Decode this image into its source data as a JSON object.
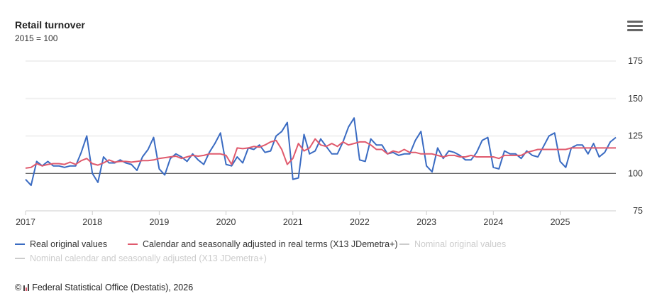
{
  "header": {
    "title": "Retail turnover",
    "subtitle": "2015 = 100",
    "menu_icon": "hamburger-menu-icon"
  },
  "chart_data": {
    "type": "line",
    "title": "Retail turnover",
    "subtitle": "2015 = 100",
    "xlabel": "",
    "ylabel": "",
    "ylim": [
      75,
      175
    ],
    "yticks": [
      "75",
      "100",
      "125",
      "150",
      "175"
    ],
    "xticks": [
      "2017",
      "2018",
      "2019",
      "2020",
      "2021",
      "2022",
      "2023",
      "2024",
      "2025"
    ],
    "x_start": "2017-01",
    "frequency": "monthly",
    "reference_line": 100,
    "grid": true,
    "legend_position": "bottom-left",
    "series": [
      {
        "name": "Real original values",
        "color": "#3a6bc2",
        "visible": true,
        "values": [
          96,
          92,
          108,
          105,
          108,
          105,
          105,
          104,
          105,
          105,
          114,
          125,
          100,
          94,
          111,
          107,
          107,
          109,
          107,
          106,
          102,
          111,
          116,
          124,
          103,
          99,
          110,
          113,
          111,
          108,
          113,
          109,
          106,
          114,
          120,
          127,
          106,
          105,
          111,
          107,
          117,
          116,
          119,
          114,
          115,
          125,
          128,
          134,
          96,
          97,
          126,
          113,
          115,
          123,
          118,
          113,
          113,
          121,
          131,
          137,
          109,
          108,
          123,
          119,
          119,
          113,
          114,
          112,
          113,
          113,
          122,
          128,
          105,
          101,
          117,
          110,
          115,
          114,
          112,
          109,
          109,
          114,
          122,
          124,
          104,
          103,
          115,
          113,
          113,
          110,
          115,
          112,
          111,
          118,
          125,
          127,
          108,
          104,
          117,
          119,
          119,
          113,
          120,
          111,
          114,
          121,
          124
        ]
      },
      {
        "name": "Calendar and seasonally adjusted in real terms (X13 JDemetra+)",
        "color": "#e05a6d",
        "visible": true,
        "values": [
          103.5,
          104,
          106.5,
          105,
          106,
          106.5,
          106.5,
          106,
          107.5,
          106,
          108.5,
          110,
          106.5,
          105.5,
          107,
          109,
          107.5,
          108,
          108,
          107.5,
          108,
          108.5,
          108.5,
          109,
          110,
          110.5,
          111,
          111.5,
          110,
          111,
          112,
          111.5,
          112,
          113,
          113,
          113,
          112,
          106,
          117,
          116.5,
          117,
          118,
          117.5,
          119,
          121,
          122,
          116,
          106,
          110,
          120,
          115,
          117,
          123,
          119,
          118,
          120,
          118,
          121,
          119,
          120,
          121,
          121,
          119,
          116,
          116,
          113,
          115,
          114,
          116,
          114,
          114,
          113,
          113,
          113,
          112,
          111,
          112,
          112,
          111,
          111,
          112,
          111,
          111,
          111,
          111,
          110,
          112,
          112,
          112,
          112,
          114,
          115,
          116,
          116,
          116,
          116,
          116,
          116,
          117,
          117,
          117,
          117,
          117,
          117,
          117,
          117,
          117
        ]
      },
      {
        "name": "Nominal original values",
        "color": "#cccccc",
        "visible": false,
        "values": []
      },
      {
        "name": "Nominal calendar and seasonally adjusted (X13 JDemetra+)",
        "color": "#cccccc",
        "visible": false,
        "values": []
      }
    ]
  },
  "footer": {
    "copyright_symbol": "©",
    "credit": "Federal Statistical Office (Destatis), 2026"
  }
}
